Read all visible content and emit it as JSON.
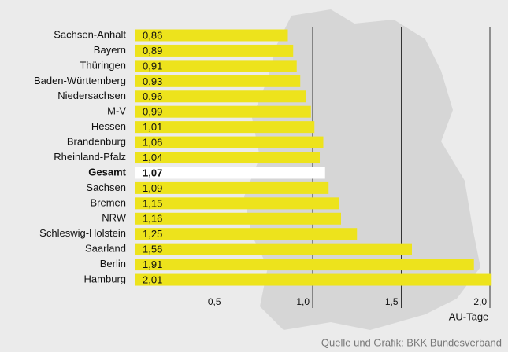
{
  "chart_data": {
    "type": "bar",
    "orientation": "horizontal",
    "categories": [
      "Sachsen-Anhalt",
      "Bayern",
      "Thüringen",
      "Baden-Württemberg",
      "Niedersachsen",
      "M-V",
      "Hessen",
      "Brandenburg",
      "Rheinland-Pfalz",
      "Gesamt",
      "Sachsen",
      "Bremen",
      "NRW",
      "Schleswig-Holstein",
      "Saarland",
      "Berlin",
      "Hamburg"
    ],
    "values": [
      0.86,
      0.89,
      0.91,
      0.93,
      0.96,
      0.99,
      1.01,
      1.06,
      1.04,
      1.07,
      1.09,
      1.15,
      1.16,
      1.25,
      1.56,
      1.91,
      2.01
    ],
    "value_labels": [
      "0,86",
      "0,89",
      "0,91",
      "0,93",
      "0,96",
      "0,99",
      "1,01",
      "1,06",
      "1,04",
      "1,07",
      "1,09",
      "1,15",
      "1,16",
      "1,25",
      "1,56",
      "1,91",
      "2,01"
    ],
    "colors": [
      "#ede31c",
      "#ede31c",
      "#ede31c",
      "#ede31c",
      "#ede31c",
      "#ede31c",
      "#ede31c",
      "#ede31c",
      "#ede31c",
      "#ffffff",
      "#ede31c",
      "#ede31c",
      "#ede31c",
      "#ede31c",
      "#ede31c",
      "#ede31c",
      "#ede31c"
    ],
    "xlim": [
      0,
      2.0
    ],
    "xticks": [
      {
        "value": 0.5,
        "label": "0,5"
      },
      {
        "value": 1.0,
        "label": "1,0"
      },
      {
        "value": 1.5,
        "label": "1,5"
      },
      {
        "value": 2.0,
        "label": "2,0"
      }
    ],
    "xlabel": "AU-Tage",
    "source": "Quelle und Grafik: BKK Bundesverband",
    "grid": true
  }
}
